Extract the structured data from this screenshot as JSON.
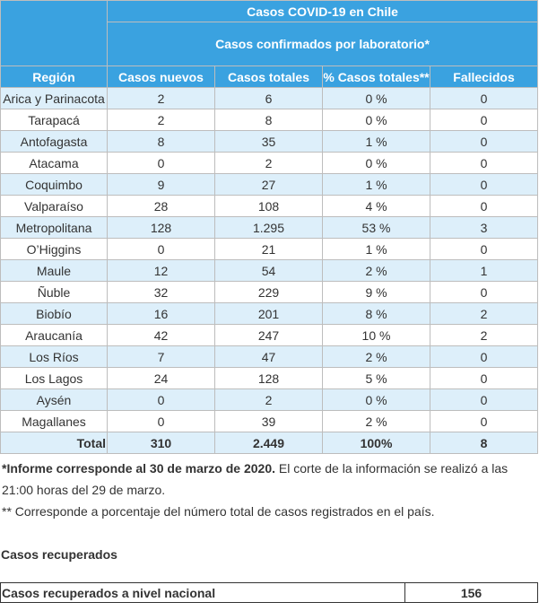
{
  "table": {
    "title": "Casos COVID-19 en Chile",
    "subtitle": "Casos confirmados por laboratorio*",
    "columns": [
      "Región",
      "Casos nuevos",
      "Casos totales",
      "% Casos totales**",
      "Fallecidos"
    ],
    "rows": [
      [
        "Arica y Parinacota",
        "2",
        "6",
        "0 %",
        "0"
      ],
      [
        "Tarapacá",
        "2",
        "8",
        "0 %",
        "0"
      ],
      [
        "Antofagasta",
        "8",
        "35",
        "1 %",
        "0"
      ],
      [
        "Atacama",
        "0",
        "2",
        "0 %",
        "0"
      ],
      [
        "Coquimbo",
        "9",
        "27",
        "1 %",
        "0"
      ],
      [
        "Valparaíso",
        "28",
        "108",
        "4 %",
        "0"
      ],
      [
        "Metropolitana",
        "128",
        "1.295",
        "53 %",
        "3"
      ],
      [
        "O’Higgins",
        "0",
        "21",
        "1 %",
        "0"
      ],
      [
        "Maule",
        "12",
        "54",
        "2 %",
        "1"
      ],
      [
        "Ñuble",
        "32",
        "229",
        "9 %",
        "0"
      ],
      [
        "Biobío",
        "16",
        "201",
        "8 %",
        "2"
      ],
      [
        "Araucanía",
        "42",
        "247",
        "10 %",
        "2"
      ],
      [
        "Los Ríos",
        "7",
        "47",
        "2 %",
        "0"
      ],
      [
        "Los Lagos",
        "24",
        "128",
        "5 %",
        "0"
      ],
      [
        "Aysén",
        "0",
        "2",
        "0 %",
        "0"
      ],
      [
        "Magallanes",
        "0",
        "39",
        "2 %",
        "0"
      ]
    ],
    "total": [
      "Total",
      "310",
      "2.449",
      "100%",
      "8"
    ]
  },
  "notes": {
    "note1_bold": "*Informe corresponde al 30 de marzo de 2020.",
    "note1_rest": " El corte de la información se realizó a las 21:00 horas del 29 de marzo.",
    "note2": "** Corresponde a porcentaje del número total de casos registrados en el país."
  },
  "recovered": {
    "title": "Casos recuperados",
    "label": "Casos recuperados a nivel nacional",
    "value": "156"
  },
  "colors": {
    "header_bg": "#3aa2e0",
    "stripe_bg": "#ddeffa"
  }
}
